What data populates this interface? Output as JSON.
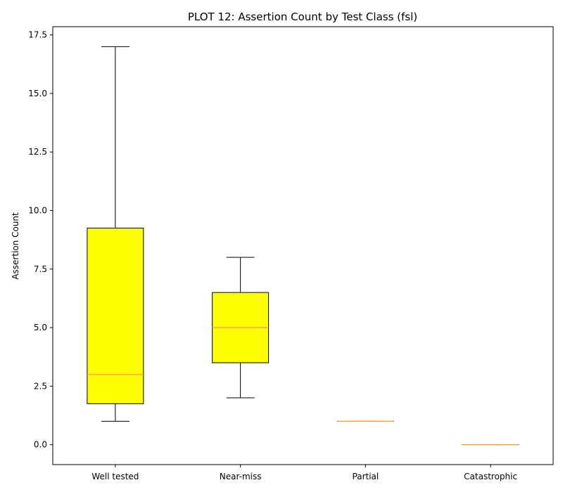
{
  "chart_data": {
    "type": "box",
    "title": "PLOT 12: Assertion Count by Test Class (fsl)",
    "xlabel": "",
    "ylabel": "Assertion Count",
    "ylim": [
      -0.85,
      17.85
    ],
    "yticks": [
      0.0,
      2.5,
      5.0,
      7.5,
      10.0,
      12.5,
      15.0,
      17.5
    ],
    "ytick_labels": [
      "0.0",
      "2.5",
      "5.0",
      "7.5",
      "10.0",
      "12.5",
      "15.0",
      "17.5"
    ],
    "grid": false,
    "legend": "none",
    "categories": [
      "Well tested",
      "Near-miss",
      "Partial",
      "Catastrophic"
    ],
    "boxes": [
      {
        "category": "Well tested",
        "whisker_low": 1,
        "q1": 1.75,
        "median": 3,
        "q3": 9.25,
        "whisker_high": 17
      },
      {
        "category": "Near-miss",
        "whisker_low": 2,
        "q1": 3.5,
        "median": 5,
        "q3": 6.5,
        "whisker_high": 8
      },
      {
        "category": "Partial",
        "whisker_low": 1,
        "q1": 1,
        "median": 1,
        "q3": 1,
        "whisker_high": 1
      },
      {
        "category": "Catastrophic",
        "whisker_low": 0,
        "q1": 0,
        "median": 0,
        "q3": 0,
        "whisker_high": 0
      }
    ],
    "colors": {
      "box_fill": "#ffff00",
      "box_edge": "#000000",
      "median": "#f5a742",
      "whisker": "#000000"
    }
  }
}
